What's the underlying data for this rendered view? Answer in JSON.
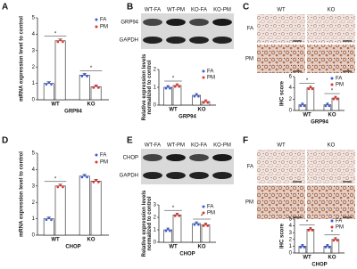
{
  "panels": [
    "A",
    "B",
    "C",
    "D",
    "E",
    "F"
  ],
  "blots": [
    {
      "lanes": [
        "WT-FA",
        "WT-PM",
        "KO-FA",
        "KO-PM"
      ],
      "rows": [
        "GRP94",
        "GAPDH"
      ]
    },
    {
      "lanes": [
        "WT-FA",
        "WT-PM",
        "KO-FA",
        "KO-PM"
      ],
      "rows": [
        "CHOP",
        "GAPDH"
      ]
    }
  ],
  "ihc": [
    {
      "columns": [
        "WT",
        "KO"
      ],
      "rows": [
        "FA",
        "PM"
      ]
    },
    {
      "columns": [
        "WT",
        "KO"
      ],
      "rows": [
        "FA",
        "PM"
      ]
    }
  ],
  "chart_data": [
    {
      "type": "bar",
      "ylabel": "mRNA expression level to control",
      "xlabel": "GRP94",
      "categories": [
        "WT",
        "KO"
      ],
      "series": [
        {
          "name": "FA",
          "color": "#3a5bd9",
          "values": [
            1.0,
            1.5
          ]
        },
        {
          "name": "PM",
          "color": "#e0352b",
          "values": [
            3.6,
            0.8
          ]
        }
      ],
      "annotations": [
        "*",
        "*"
      ],
      "ylim": [
        0,
        5
      ],
      "yticks": [
        0,
        1,
        2,
        3,
        4,
        5
      ]
    },
    {
      "type": "bar",
      "ylabel": "Relative expression levels normalized to control",
      "xlabel": "GRP94",
      "categories": [
        "WT",
        "KO"
      ],
      "series": [
        {
          "name": "FA",
          "color": "#3a5bd9",
          "values": [
            1.0,
            0.55
          ]
        },
        {
          "name": "PM",
          "color": "#e0352b",
          "values": [
            1.1,
            0.2
          ]
        }
      ],
      "annotations": [
        "*"
      ],
      "ylim": [
        0,
        2
      ],
      "yticks": [
        0,
        1,
        2
      ]
    },
    {
      "type": "bar",
      "ylabel": "IHC score",
      "xlabel": "GRP94",
      "categories": [
        "WT",
        "KO"
      ],
      "series": [
        {
          "name": "FA",
          "color": "#3a5bd9",
          "values": [
            1.0,
            1.0
          ]
        },
        {
          "name": "PM",
          "color": "#e0352b",
          "values": [
            4.0,
            2.2
          ]
        }
      ],
      "annotations": [
        "*",
        "*"
      ],
      "ylim": [
        0,
        6
      ],
      "yticks": [
        0,
        2,
        4,
        6
      ]
    },
    {
      "type": "bar",
      "ylabel": "mRNA expression level to control",
      "xlabel": "CHOP",
      "categories": [
        "WT",
        "KO"
      ],
      "series": [
        {
          "name": "FA",
          "color": "#3a5bd9",
          "values": [
            1.0,
            3.6
          ]
        },
        {
          "name": "PM",
          "color": "#e0352b",
          "values": [
            3.0,
            3.3
          ]
        }
      ],
      "annotations": [
        "*"
      ],
      "ylim": [
        0,
        5
      ],
      "yticks": [
        0,
        1,
        2,
        3,
        4,
        5
      ]
    },
    {
      "type": "bar",
      "ylabel": "Relative expression levels normalized to control",
      "xlabel": "CHOP",
      "categories": [
        "WT",
        "KO"
      ],
      "series": [
        {
          "name": "FA",
          "color": "#3a5bd9",
          "values": [
            1.0,
            1.5
          ]
        },
        {
          "name": "PM",
          "color": "#e0352b",
          "values": [
            2.2,
            1.4
          ]
        }
      ],
      "annotations": [
        "*",
        "*"
      ],
      "ylim": [
        0,
        3
      ],
      "yticks": [
        0,
        1,
        2,
        3
      ]
    },
    {
      "type": "bar",
      "ylabel": "IHC score",
      "xlabel": "CHOP",
      "categories": [
        "WT",
        "KO"
      ],
      "series": [
        {
          "name": "FA",
          "color": "#3a5bd9",
          "values": [
            1.0,
            1.0
          ]
        },
        {
          "name": "PM",
          "color": "#e0352b",
          "values": [
            3.5,
            2.0
          ]
        }
      ],
      "annotations": [
        "*",
        "*"
      ],
      "ylim": [
        0,
        5
      ],
      "yticks": [
        0,
        1,
        2,
        3,
        4,
        5
      ]
    }
  ]
}
